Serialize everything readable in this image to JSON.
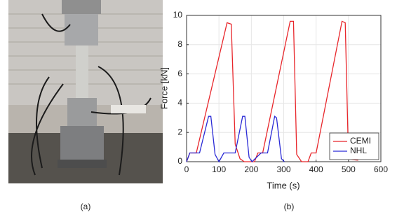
{
  "captions": [
    "(a)",
    "(b)"
  ],
  "chart_data": {
    "type": "line",
    "x_label": "Time (s)",
    "y_label": "Force [kN]",
    "xlim": [
      0,
      600
    ],
    "ylim": [
      0,
      10
    ],
    "xticks": [
      0,
      100,
      200,
      300,
      400,
      500,
      600
    ],
    "yticks": [
      0,
      2,
      4,
      6,
      8,
      10
    ],
    "grid": true,
    "legend": "lower right",
    "series": [
      {
        "name": "CEMI",
        "color": "#e8262b",
        "x": [
          0,
          10,
          30,
          125,
          138,
          150,
          165,
          178,
          210,
          220,
          235,
          320,
          330,
          340,
          355,
          375,
          385,
          400,
          480,
          490,
          500,
          510,
          530
        ],
        "values": [
          0,
          0.6,
          0.6,
          9.5,
          9.4,
          1.2,
          0.2,
          0,
          0,
          0.6,
          0.6,
          9.6,
          9.6,
          0.5,
          0,
          0,
          0.6,
          0.6,
          9.6,
          9.5,
          0.3,
          0.15,
          0.1
        ]
      },
      {
        "name": "NHL",
        "color": "#2a2ad6",
        "x": [
          0,
          10,
          40,
          68,
          75,
          88,
          100,
          115,
          150,
          173,
          180,
          193,
          202,
          230,
          250,
          272,
          278,
          293,
          302
        ],
        "values": [
          0,
          0.6,
          0.6,
          3.1,
          3.1,
          0.5,
          0,
          0.6,
          0.6,
          3.1,
          3.1,
          0.3,
          0,
          0.6,
          0.6,
          3.1,
          3.0,
          0.2,
          0
        ]
      }
    ]
  }
}
